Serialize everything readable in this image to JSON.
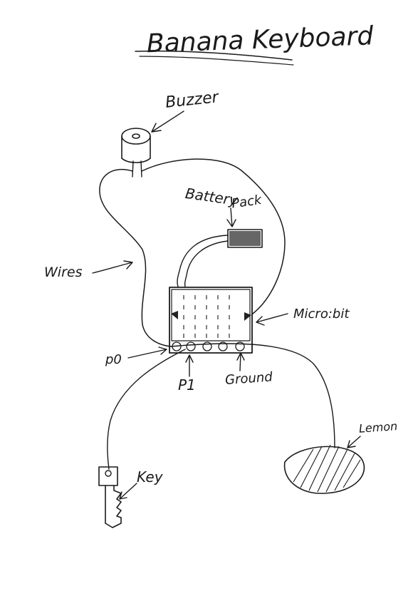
{
  "title": "Banana Keyboard",
  "labels": {
    "buzzer": "Buzzer",
    "battery": "Battery",
    "pack": "Pack",
    "wires": "Wires",
    "microbit": "Micro:bit",
    "p0": "p0",
    "p1": "P1",
    "ground": "Ground",
    "lemon": "Lemon",
    "key": "Key"
  },
  "icons": [
    "buzzer-icon",
    "battery-pack-icon",
    "microbit-icon",
    "lemon-icon",
    "key-icon",
    "arrow-icon"
  ],
  "colors": {
    "ink": "#1a1a1a",
    "paper": "#ffffff"
  }
}
